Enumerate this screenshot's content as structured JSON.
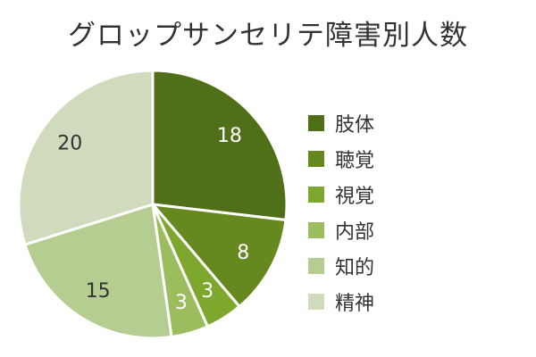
{
  "title": "グロップサンセリテ障害別人数",
  "chart_data": {
    "type": "pie",
    "title": "グロップサンセリテ障害別人数",
    "categories": [
      "肢体",
      "聴覚",
      "視覚",
      "内部",
      "知的",
      "精神"
    ],
    "values": [
      18,
      8,
      3,
      3,
      15,
      20
    ],
    "colors": [
      "#4f6f18",
      "#65891f",
      "#7ea72e",
      "#9bbd5e",
      "#b6cd92",
      "#cfdbbc"
    ],
    "label_colors": [
      "#ffffff",
      "#ffffff",
      "#ffffff",
      "#ffffff",
      "#333333",
      "#333333"
    ],
    "legend_position": "right",
    "start_angle_deg": 0,
    "direction": "clockwise"
  }
}
